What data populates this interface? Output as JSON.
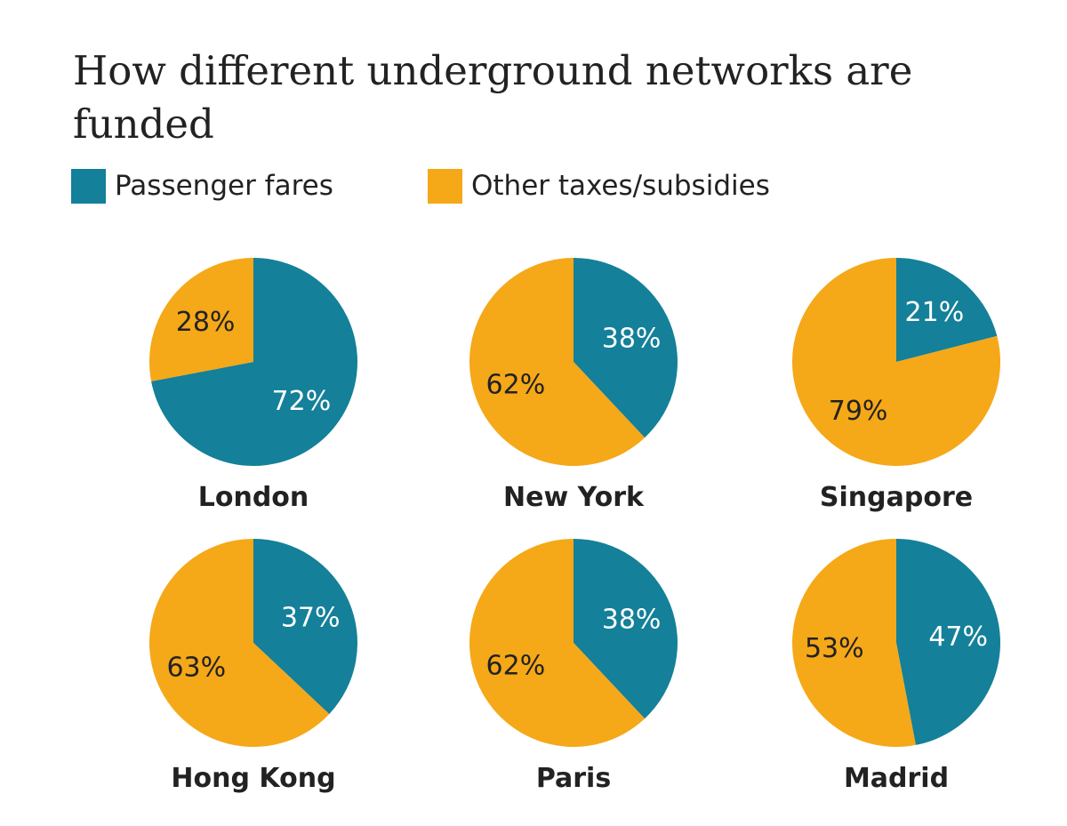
{
  "title": "How different underground networks are funded",
  "legend": [
    {
      "label": "Passenger fares",
      "color": "#148099"
    },
    {
      "label": "Other taxes/subsidies",
      "color": "#f5a818"
    }
  ],
  "colors": {
    "fares": "#148099",
    "other": "#f5a818",
    "label_on_fares": "#ffffff",
    "label_on_other": "#222222"
  },
  "chart_data": {
    "type": "pie",
    "title": "How different underground networks are funded",
    "series": [
      "Passenger fares",
      "Other taxes/subsidies"
    ],
    "legend_position": "top-left",
    "charts": [
      {
        "city": "London",
        "fares": 72,
        "other": 28,
        "fares_label": "72%",
        "other_label": "28%"
      },
      {
        "city": "New York",
        "fares": 38,
        "other": 62,
        "fares_label": "38%",
        "other_label": "62%"
      },
      {
        "city": "Singapore",
        "fares": 21,
        "other": 79,
        "fares_label": "21%",
        "other_label": "79%"
      },
      {
        "city": "Hong Kong",
        "fares": 37,
        "other": 63,
        "fares_label": "37%",
        "other_label": "63%"
      },
      {
        "city": "Paris",
        "fares": 38,
        "other": 62,
        "fares_label": "38%",
        "other_label": "62%"
      },
      {
        "city": "Madrid",
        "fares": 47,
        "other": 53,
        "fares_label": "47%",
        "other_label": "53%"
      }
    ]
  }
}
